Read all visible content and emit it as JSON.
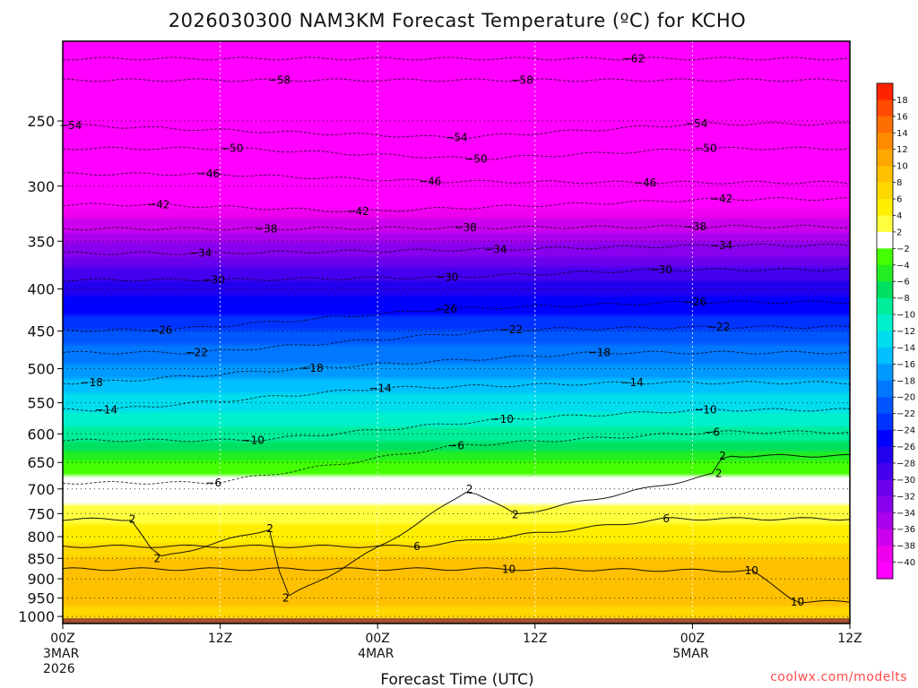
{
  "chart_data": {
    "type": "heatmap",
    "title": "2026030300 NAM3KM Forecast Temperature (ºC) for KCHO",
    "xlabel": "Forecast Time (UTC)",
    "ylabel": "",
    "credit": "coolwx.com/modelts",
    "x_range_hours": [
      0,
      60
    ],
    "y_range_hpa": [
      1020,
      200
    ],
    "y_ticks": [
      250,
      300,
      350,
      400,
      450,
      500,
      550,
      600,
      650,
      700,
      750,
      800,
      850,
      900,
      950,
      1000
    ],
    "x_ticks": [
      {
        "hour": 0,
        "label": "00Z",
        "date": "3MAR",
        "year": "2026"
      },
      {
        "hour": 12,
        "label": "12Z",
        "date": "",
        "year": ""
      },
      {
        "hour": 24,
        "label": "00Z",
        "date": "4MAR",
        "year": ""
      },
      {
        "hour": 36,
        "label": "12Z",
        "date": "",
        "year": ""
      },
      {
        "hour": 48,
        "label": "00Z",
        "date": "5MAR",
        "year": ""
      },
      {
        "hour": 60,
        "label": "12Z",
        "date": "",
        "year": ""
      }
    ],
    "grid": true,
    "legend_placement": "right",
    "colorbar": {
      "labels": [
        "18",
        "16",
        "14",
        "12",
        "10",
        "8",
        "6",
        "4",
        "2",
        "−2",
        "−4",
        "−6",
        "−8",
        "−10",
        "−12",
        "−14",
        "−16",
        "−18",
        "−20",
        "−22",
        "−24",
        "−26",
        "−28",
        "−30",
        "−32",
        "−34",
        "−36",
        "−38",
        "−40"
      ],
      "colors": [
        "#ff2200",
        "#ff4a00",
        "#ff6e00",
        "#ff8c00",
        "#ffa800",
        "#ffc000",
        "#ffd800",
        "#ffee00",
        "#ffff40",
        "#ffffff",
        "#44ff00",
        "#22ee22",
        "#00e060",
        "#00ee99",
        "#00f0cc",
        "#00ddee",
        "#00c0ff",
        "#0099ff",
        "#0077ff",
        "#0055ff",
        "#0033ff",
        "#0000ff",
        "#2200ee",
        "#4400ee",
        "#6a00ee",
        "#8800ee",
        "#aa00ee",
        "#cc00ee",
        "#ee00ee",
        "#ff00ff"
      ]
    },
    "temperature_profile": [
      {
        "p": 1000,
        "t": 6
      },
      {
        "p": 950,
        "t": 9
      },
      {
        "p": 900,
        "t": 9
      },
      {
        "p": 850,
        "t": 8
      },
      {
        "p": 800,
        "t": 5
      },
      {
        "p": 750,
        "t": 3
      },
      {
        "p": 700,
        "t": 0
      },
      {
        "p": 650,
        "t": -4
      },
      {
        "p": 600,
        "t": -9
      },
      {
        "p": 550,
        "t": -13
      },
      {
        "p": 500,
        "t": -17
      },
      {
        "p": 450,
        "t": -22
      },
      {
        "p": 400,
        "t": -27
      },
      {
        "p": 350,
        "t": -34
      },
      {
        "p": 300,
        "t": -44
      },
      {
        "p": 250,
        "t": -54
      },
      {
        "p": 200,
        "t": -62
      }
    ],
    "contour_labels": [
      {
        "hour": 0.6,
        "p": 253,
        "text": "−54"
      },
      {
        "hour": 16.5,
        "p": 223,
        "text": "−58"
      },
      {
        "hour": 35.0,
        "p": 223,
        "text": "−58"
      },
      {
        "hour": 43.5,
        "p": 210,
        "text": "−62"
      },
      {
        "hour": 30.0,
        "p": 262,
        "text": "−54"
      },
      {
        "hour": 48.3,
        "p": 252,
        "text": "−54"
      },
      {
        "hour": 12.9,
        "p": 270,
        "text": "−50"
      },
      {
        "hour": 31.5,
        "p": 278,
        "text": "−50"
      },
      {
        "hour": 49.0,
        "p": 270,
        "text": "−50"
      },
      {
        "hour": 11.1,
        "p": 290,
        "text": "−46"
      },
      {
        "hour": 28.0,
        "p": 296,
        "text": "−46"
      },
      {
        "hour": 44.4,
        "p": 297,
        "text": "−46"
      },
      {
        "hour": 7.3,
        "p": 316,
        "text": "−42"
      },
      {
        "hour": 22.5,
        "p": 322,
        "text": "−42"
      },
      {
        "hour": 50.2,
        "p": 311,
        "text": "−42"
      },
      {
        "hour": 15.5,
        "p": 338,
        "text": "−38"
      },
      {
        "hour": 30.7,
        "p": 337,
        "text": "−38"
      },
      {
        "hour": 48.2,
        "p": 336,
        "text": "−38"
      },
      {
        "hour": 10.5,
        "p": 362,
        "text": "−34"
      },
      {
        "hour": 33.0,
        "p": 358,
        "text": "−34"
      },
      {
        "hour": 50.2,
        "p": 354,
        "text": "−34"
      },
      {
        "hour": 11.5,
        "p": 390,
        "text": "−30"
      },
      {
        "hour": 29.3,
        "p": 387,
        "text": "−30"
      },
      {
        "hour": 45.6,
        "p": 379,
        "text": "−30"
      },
      {
        "hour": 7.5,
        "p": 449,
        "text": "−26"
      },
      {
        "hour": 29.2,
        "p": 423,
        "text": "−26"
      },
      {
        "hour": 48.2,
        "p": 415,
        "text": "−26"
      },
      {
        "hour": 10.2,
        "p": 478,
        "text": "−22"
      },
      {
        "hour": 34.2,
        "p": 448,
        "text": "−22"
      },
      {
        "hour": 50.0,
        "p": 445,
        "text": "−22"
      },
      {
        "hour": 2.2,
        "p": 520,
        "text": "−18"
      },
      {
        "hour": 19.0,
        "p": 499,
        "text": "−18"
      },
      {
        "hour": 40.9,
        "p": 478,
        "text": "−18"
      },
      {
        "hour": 3.3,
        "p": 561,
        "text": "−14"
      },
      {
        "hour": 24.2,
        "p": 528,
        "text": "−14"
      },
      {
        "hour": 43.4,
        "p": 520,
        "text": "−14"
      },
      {
        "hour": 14.5,
        "p": 611,
        "text": "−10"
      },
      {
        "hour": 33.5,
        "p": 576,
        "text": "−10"
      },
      {
        "hour": 49.0,
        "p": 561,
        "text": "−10"
      },
      {
        "hour": 11.5,
        "p": 688,
        "text": "−6"
      },
      {
        "hour": 30.0,
        "p": 620,
        "text": "−6"
      },
      {
        "hour": 49.5,
        "p": 597,
        "text": "−6"
      },
      {
        "hour": 5.3,
        "p": 762,
        "text": "2"
      },
      {
        "hour": 15.8,
        "p": 782,
        "text": "2"
      },
      {
        "hour": 7.2,
        "p": 850,
        "text": "2"
      },
      {
        "hour": 17.0,
        "p": 950,
        "text": "2"
      },
      {
        "hour": 31.0,
        "p": 700,
        "text": "2"
      },
      {
        "hour": 34.5,
        "p": 752,
        "text": "2"
      },
      {
        "hour": 50.3,
        "p": 638,
        "text": "2"
      },
      {
        "hour": 50.0,
        "p": 670,
        "text": "2"
      },
      {
        "hour": 27.0,
        "p": 822,
        "text": "6"
      },
      {
        "hour": 46.0,
        "p": 761,
        "text": "6"
      },
      {
        "hour": 34.0,
        "p": 876,
        "text": "10"
      },
      {
        "hour": 52.5,
        "p": 880,
        "text": "10"
      },
      {
        "hour": 56.0,
        "p": 960,
        "text": "10"
      }
    ],
    "ground_top_hpa": 1005
  }
}
